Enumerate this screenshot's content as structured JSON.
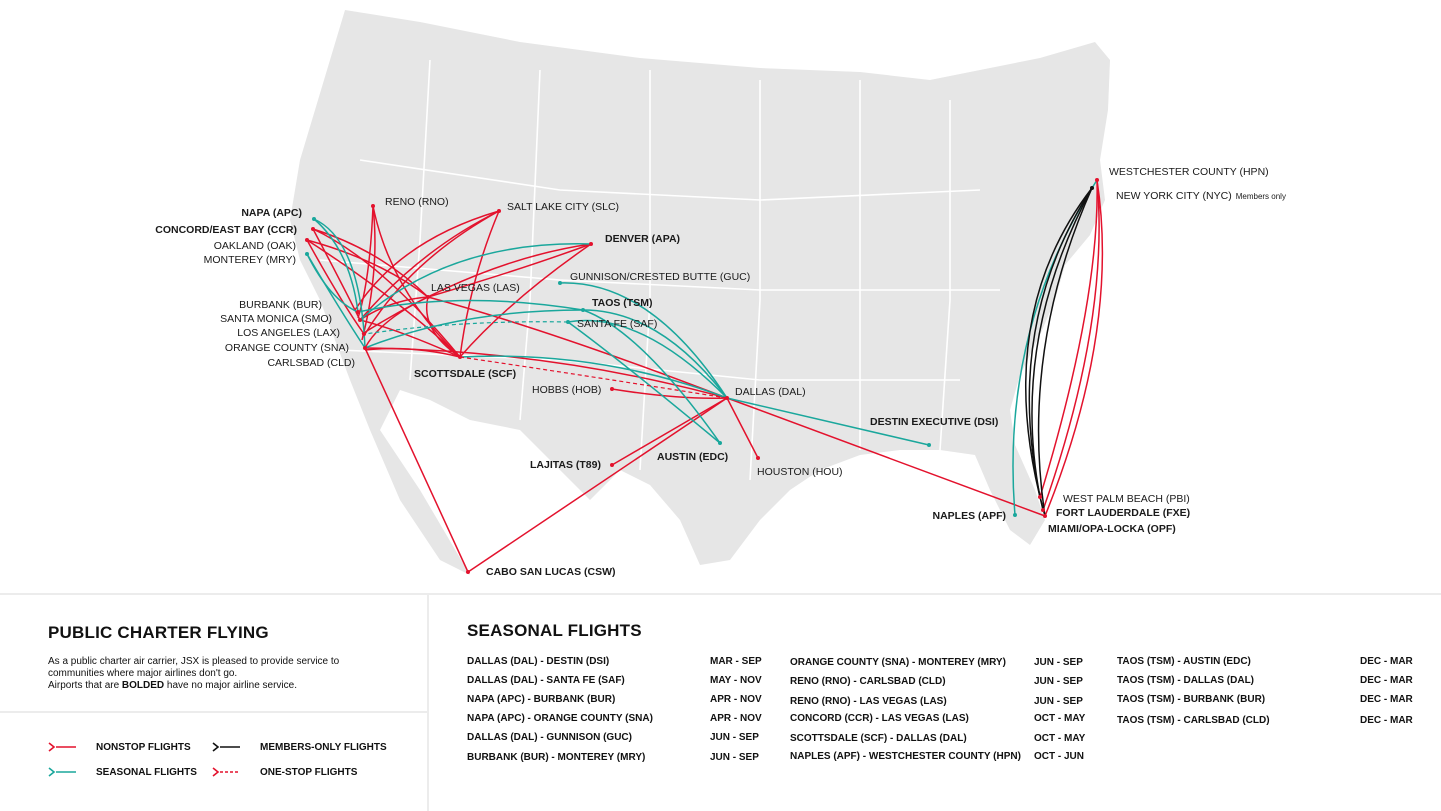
{
  "colors": {
    "nonstop": "#e3122d",
    "seasonal": "#1aa79c",
    "members": "#111111",
    "land": "#e6e6e6",
    "border": "#ffffff"
  },
  "airports": {
    "napa": "NAPA (APC)",
    "concord": "CONCORD/EAST BAY (CCR)",
    "oakland": "OAKLAND (OAK)",
    "monterey": "MONTEREY (MRY)",
    "burbank": "BURBANK (BUR)",
    "santa_monica": "SANTA MONICA (SMO)",
    "los_angeles": "LOS ANGELES (LAX)",
    "orange_county": "ORANGE COUNTY (SNA)",
    "carlsbad": "CARLSBAD (CLD)",
    "reno": "RENO (RNO)",
    "salt_lake": "SALT LAKE CITY (SLC)",
    "denver": "DENVER (APA)",
    "gunnison": "GUNNISON/CRESTED BUTTE (GUC)",
    "las_vegas": "LAS VEGAS (LAS)",
    "taos": "TAOS (TSM)",
    "santa_fe": "SANTA FE (SAF)",
    "scottsdale": "SCOTTSDALE (SCF)",
    "hobbs": "HOBBS (HOB)",
    "dallas": "DALLAS (DAL)",
    "lajitas": "LAJITAS (T89)",
    "austin": "AUSTIN (EDC)",
    "houston": "HOUSTON (HOU)",
    "destin": "DESTIN EXECUTIVE (DSI)",
    "cabo": "CABO SAN LUCAS (CSW)",
    "westchester": "WESTCHESTER COUNTY (HPN)",
    "nyc": "NEW YORK CITY (NYC)",
    "nyc_note": "Members only",
    "west_palm": "WEST PALM BEACH (PBI)",
    "fort_lauderdale": "FORT LAUDERDALE (FXE)",
    "miami": "MIAMI/OPA-LOCKA (OPF)",
    "naples": "NAPLES (APF)"
  },
  "public_charter": {
    "title": "PUBLIC CHARTER FLYING",
    "desc_1": "As a public charter air carrier, JSX is pleased to provide service to communities where major airlines don't go.",
    "desc_2a": "Airports that are ",
    "desc_2b": "BOLDED",
    "desc_2c": " have no major airline service."
  },
  "legend": {
    "nonstop": "NONSTOP FLIGHTS",
    "members": "MEMBERS-ONLY FLIGHTS",
    "seasonal": "SEASONAL FLIGHTS",
    "onestop": "ONE-STOP FLIGHTS"
  },
  "seasonal": {
    "title": "SEASONAL FLIGHTS",
    "col1": [
      {
        "route": "DALLAS (DAL) - DESTIN (DSI)",
        "season": "MAR - SEP"
      },
      {
        "route": "DALLAS (DAL) - SANTA FE (SAF)",
        "season": "MAY - NOV"
      },
      {
        "route": "NAPA (APC) - BURBANK (BUR)",
        "season": "APR - NOV"
      },
      {
        "route": "NAPA (APC) - ORANGE COUNTY (SNA)",
        "season": "APR - NOV"
      },
      {
        "route": "DALLAS (DAL) - GUNNISON (GUC)",
        "season": "JUN - SEP"
      },
      {
        "route": "BURBANK (BUR) - MONTEREY (MRY)",
        "season": "JUN - SEP"
      }
    ],
    "col2": [
      {
        "route": "ORANGE COUNTY (SNA) - MONTEREY (MRY)",
        "season": "JUN - SEP"
      },
      {
        "route": "RENO (RNO) - CARLSBAD (CLD)",
        "season": "JUN - SEP"
      },
      {
        "route": "RENO (RNO) - LAS VEGAS (LAS)",
        "season": "JUN - SEP"
      },
      {
        "route": "CONCORD (CCR) - LAS VEGAS (LAS)",
        "season": "OCT - MAY"
      },
      {
        "route": "SCOTTSDALE (SCF) - DALLAS (DAL)",
        "season": "OCT - MAY"
      },
      {
        "route": "NAPLES (APF) - WESTCHESTER COUNTY (HPN)",
        "season": "OCT - JUN"
      }
    ],
    "col3": [
      {
        "route": "TAOS (TSM) - AUSTIN (EDC)",
        "season": "DEC - MAR"
      },
      {
        "route": "TAOS (TSM) - DALLAS (DAL)",
        "season": "DEC - MAR"
      },
      {
        "route": "TAOS (TSM) - BURBANK (BUR)",
        "season": "DEC - MAR"
      },
      {
        "route": "TAOS (TSM) - CARLSBAD (CLD)",
        "season": "DEC - MAR"
      }
    ]
  }
}
